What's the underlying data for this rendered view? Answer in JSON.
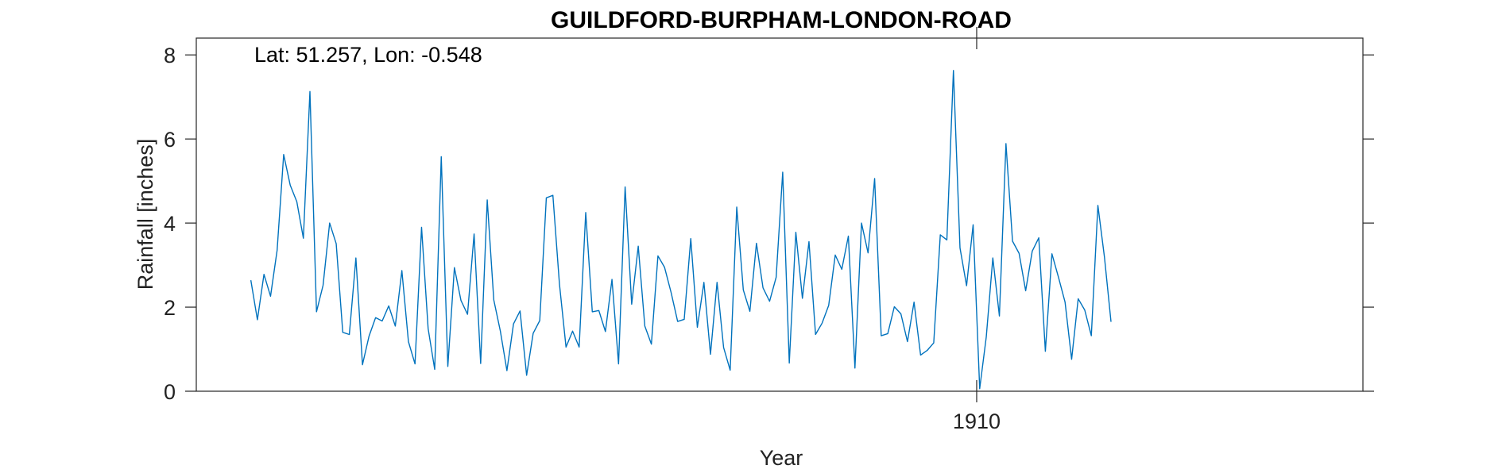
{
  "chart_data": {
    "type": "line",
    "title": "GUILDFORD-BURPHAM-LONDON-ROAD",
    "annotation": "Lat: 51.257, Lon: -0.548",
    "xlabel": "Year",
    "ylabel": "Rainfall [inches]",
    "xlim": [
      1900.1,
      1914.9
    ],
    "ylim": [
      0,
      8.4
    ],
    "xticks": [
      1910
    ],
    "xtick_labels": [
      "1910"
    ],
    "yticks": [
      0,
      2,
      4,
      6,
      8
    ],
    "ytick_labels": [
      "0",
      "2",
      "4",
      "6",
      "8"
    ],
    "grid": false,
    "series_color": "#0072BD",
    "series": [
      {
        "start_year": 1900.792,
        "step": 0.0833,
        "values": [
          2.64,
          1.7,
          2.78,
          2.26,
          3.35,
          5.63,
          4.9,
          4.51,
          3.64,
          7.13,
          1.89,
          2.52,
          4.0,
          3.51,
          1.4,
          1.35,
          3.17,
          0.63,
          1.31,
          1.75,
          1.67,
          2.03,
          1.55,
          2.87,
          1.18,
          0.65,
          3.9,
          1.49,
          0.52,
          5.58,
          0.59,
          2.94,
          2.16,
          1.83,
          3.74,
          0.66,
          4.55,
          2.17,
          1.43,
          0.49,
          1.6,
          1.91,
          0.38,
          1.38,
          1.68,
          4.6,
          4.66,
          2.55,
          1.05,
          1.43,
          1.05,
          4.25,
          1.89,
          1.92,
          1.42,
          2.66,
          0.65,
          4.86,
          2.07,
          3.45,
          1.55,
          1.12,
          3.22,
          2.95,
          2.35,
          1.66,
          1.71,
          3.63,
          1.52,
          2.59,
          0.88,
          2.59,
          1.04,
          0.5,
          4.38,
          2.41,
          1.9,
          3.52,
          2.46,
          2.14,
          2.71,
          5.21,
          0.67,
          3.78,
          2.21,
          3.56,
          1.35,
          1.62,
          2.04,
          3.24,
          2.9,
          3.69,
          0.55,
          4.0,
          3.29,
          5.06,
          1.32,
          1.37,
          2.01,
          1.84,
          1.18,
          2.12,
          0.86,
          0.97,
          1.15,
          3.72,
          3.6,
          7.63,
          3.41,
          2.51,
          3.96,
          0.06,
          1.29,
          3.17,
          1.79,
          5.89,
          3.57,
          3.28,
          2.39,
          3.33,
          3.65,
          0.95,
          3.27,
          2.71,
          2.12,
          0.76,
          2.2,
          1.93,
          1.32,
          4.42,
          3.19,
          1.65
        ]
      }
    ]
  }
}
